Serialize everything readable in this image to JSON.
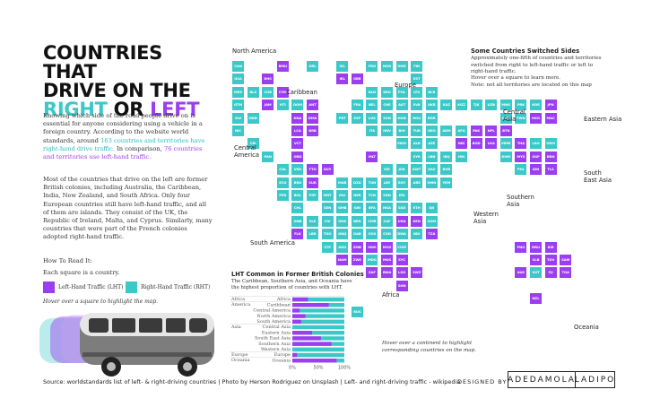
{
  "title": {
    "line1": "COUNTRIES THAT",
    "line2": "DRIVE ON THE",
    "right": "RIGHT",
    "or": " OR ",
    "left": "LEFT"
  },
  "intro": {
    "p1a": "Knowing which side of the road people drive on is essential for anyone considering using a vehicle in a foreign country. According to the website world standards, around ",
    "p1b": "163 countries and territories have right-hand drive traffic.",
    "p1c": " In comparison, ",
    "p1d": "76 countries and territories use left-hand traffic.",
    "p2": "Most of the countries that drive on the left are former British colonies, including Australia, the Caribbean, India, New Zealand, and South Africa. Only four European countries still have left-hand traffic, and all of them are islands. They consist of the UK, the Republic of Ireland, Malta, and Cyprus. Similarly, many countries that were part of the French colonies adopted right-hand traffic."
  },
  "howto": {
    "heading": "How To Read It:",
    "sub": "Each square is a country.",
    "lht_label": "Left-Hand Traffic (LHT)",
    "rht_label": "Right-Hand Traffic (RHT)",
    "hover": "Hover over a square to highlight the map."
  },
  "colors": {
    "lht": "#9b3df0",
    "rht": "#3cc8c8",
    "dark": "#2a2a2a"
  },
  "map": {
    "continents": [
      "North America",
      "Caribbean",
      "Central America",
      "South America",
      "Europe",
      "Central Asia",
      "Eastern Asia",
      "South East Asia",
      "Southern Asia",
      "Western Asia",
      "Africa",
      "Oceania"
    ],
    "switched_title": "Some Countries Switched Sides",
    "switched_text": "Approximately one-fifth of countries and territories switched from right to left-hand traffic or left to right-hand traffic.",
    "hover_note": "Hover over a square to learn more.",
    "territory_note": "Note: not all territories are located on this map",
    "continent_hover": "Hover over a continent to highlight corresponding countries on the map.",
    "cells": [
      {
        "code": "CAN",
        "t": "R"
      },
      {
        "code": "GRL",
        "t": "R"
      },
      {
        "code": "BMU",
        "t": "L"
      },
      {
        "code": "USA",
        "t": "R"
      },
      {
        "code": "BHS",
        "t": "L"
      },
      {
        "code": "MEX",
        "t": "R"
      },
      {
        "code": "BLZ",
        "t": "R"
      },
      {
        "code": "CUB",
        "t": "R"
      },
      {
        "code": "CYM",
        "t": "L"
      },
      {
        "code": "GTM",
        "t": "R"
      },
      {
        "code": "JAM",
        "t": "L"
      },
      {
        "code": "HTI",
        "t": "R"
      },
      {
        "code": "DOM",
        "t": "R"
      },
      {
        "code": "ANT",
        "t": "L"
      },
      {
        "code": "SLV",
        "t": "R"
      },
      {
        "code": "HND",
        "t": "R"
      },
      {
        "code": "KNA",
        "t": "L"
      },
      {
        "code": "DMA",
        "t": "L"
      },
      {
        "code": "NIC",
        "t": "R"
      },
      {
        "code": "LCA",
        "t": "L"
      },
      {
        "code": "BRB",
        "t": "L"
      },
      {
        "code": "CRI",
        "t": "R"
      },
      {
        "code": "VCT",
        "t": "L"
      },
      {
        "code": "GRD",
        "t": "L"
      },
      {
        "code": "PAN",
        "t": "R"
      },
      {
        "code": "TTO",
        "t": "L"
      },
      {
        "code": "COL",
        "t": "R"
      },
      {
        "code": "VEN",
        "t": "R"
      },
      {
        "code": "GUY",
        "t": "L"
      },
      {
        "code": "ECU",
        "t": "R"
      },
      {
        "code": "BRA",
        "t": "R"
      },
      {
        "code": "SUR",
        "t": "L"
      },
      {
        "code": "PER",
        "t": "R"
      },
      {
        "code": "BOL",
        "t": "R"
      },
      {
        "code": "PRY",
        "t": "R"
      },
      {
        "code": "URY",
        "t": "R"
      },
      {
        "code": "CHL",
        "t": "R"
      },
      {
        "code": "ARG",
        "t": "R"
      },
      {
        "code": "FLK",
        "t": "L"
      },
      {
        "code": "ISL",
        "t": "R"
      },
      {
        "code": "FRO",
        "t": "R"
      },
      {
        "code": "NOR",
        "t": "R"
      },
      {
        "code": "SWE",
        "t": "R"
      },
      {
        "code": "FIN",
        "t": "R"
      },
      {
        "code": "IRL",
        "t": "L"
      },
      {
        "code": "GBR",
        "t": "L"
      },
      {
        "code": "EST",
        "t": "R"
      },
      {
        "code": "NLD",
        "t": "R"
      },
      {
        "code": "DEU",
        "t": "R"
      },
      {
        "code": "POL",
        "t": "R"
      },
      {
        "code": "LTU",
        "t": "R"
      },
      {
        "code": "BLR",
        "t": "R"
      },
      {
        "code": "RUS",
        "t": "R"
      },
      {
        "code": "FRA",
        "t": "R"
      },
      {
        "code": "BEL",
        "t": "R"
      },
      {
        "code": "CHE",
        "t": "R"
      },
      {
        "code": "AUT",
        "t": "R"
      },
      {
        "code": "SVK",
        "t": "R"
      },
      {
        "code": "UKR",
        "t": "R"
      },
      {
        "code": "MDA",
        "t": "R"
      },
      {
        "code": "PRT",
        "t": "R"
      },
      {
        "code": "ESP",
        "t": "R"
      },
      {
        "code": "LUX",
        "t": "R"
      },
      {
        "code": "SVN",
        "t": "R"
      },
      {
        "code": "HUN",
        "t": "R"
      },
      {
        "code": "ROU",
        "t": "R"
      },
      {
        "code": "BGR",
        "t": "R"
      },
      {
        "code": "ITA",
        "t": "R"
      },
      {
        "code": "HRV",
        "t": "R"
      },
      {
        "code": "BIH",
        "t": "R"
      },
      {
        "code": "SRB",
        "t": "R"
      },
      {
        "code": "MNE",
        "t": "R"
      },
      {
        "code": "MKD",
        "t": "R"
      },
      {
        "code": "ALB",
        "t": "R"
      },
      {
        "code": "GRC",
        "t": "R"
      },
      {
        "code": "MLT",
        "t": "L"
      },
      {
        "code": "CYP",
        "t": "L"
      },
      {
        "code": "KAZ",
        "t": "R"
      },
      {
        "code": "KGZ",
        "t": "R"
      },
      {
        "code": "TJK",
        "t": "R"
      },
      {
        "code": "UZB",
        "t": "R"
      },
      {
        "code": "TKM",
        "t": "R"
      },
      {
        "code": "MNG",
        "t": "R"
      },
      {
        "code": "PRK",
        "t": "R"
      },
      {
        "code": "KOR",
        "t": "R"
      },
      {
        "code": "JPN",
        "t": "L"
      },
      {
        "code": "CHN",
        "t": "R"
      },
      {
        "code": "TWN",
        "t": "R"
      },
      {
        "code": "HKG",
        "t": "L"
      },
      {
        "code": "MAC",
        "t": "L"
      },
      {
        "code": "AFG",
        "t": "R"
      },
      {
        "code": "PAK",
        "t": "L"
      },
      {
        "code": "NPL",
        "t": "L"
      },
      {
        "code": "BTN",
        "t": "L"
      },
      {
        "code": "IND",
        "t": "L"
      },
      {
        "code": "BGD",
        "t": "L"
      },
      {
        "code": "LKA",
        "t": "L"
      },
      {
        "code": "MDV",
        "t": "L"
      },
      {
        "code": "MMR",
        "t": "R"
      },
      {
        "code": "THA",
        "t": "L"
      },
      {
        "code": "LAO",
        "t": "R"
      },
      {
        "code": "VNM",
        "t": "R"
      },
      {
        "code": "KHM",
        "t": "R"
      },
      {
        "code": "MYS",
        "t": "L"
      },
      {
        "code": "SGP",
        "t": "L"
      },
      {
        "code": "BRN",
        "t": "L"
      },
      {
        "code": "PHL",
        "t": "R"
      },
      {
        "code": "IDN",
        "t": "L"
      },
      {
        "code": "TLS",
        "t": "L"
      },
      {
        "code": "TUR",
        "t": "R"
      },
      {
        "code": "GEO",
        "t": "R"
      },
      {
        "code": "ARM",
        "t": "R"
      },
      {
        "code": "AZE",
        "t": "R"
      },
      {
        "code": "SYR",
        "t": "R"
      },
      {
        "code": "LBN",
        "t": "R"
      },
      {
        "code": "IRQ",
        "t": "R"
      },
      {
        "code": "IRN",
        "t": "R"
      },
      {
        "code": "ISR",
        "t": "R"
      },
      {
        "code": "JOR",
        "t": "R"
      },
      {
        "code": "KWT",
        "t": "R"
      },
      {
        "code": "SAU",
        "t": "R"
      },
      {
        "code": "BHR",
        "t": "R"
      },
      {
        "code": "QAT",
        "t": "R"
      },
      {
        "code": "ARE",
        "t": "R"
      },
      {
        "code": "OMN",
        "t": "R"
      },
      {
        "code": "YEM",
        "t": "R"
      },
      {
        "code": "MAR",
        "t": "R"
      },
      {
        "code": "DZA",
        "t": "R"
      },
      {
        "code": "TUN",
        "t": "R"
      },
      {
        "code": "LBY",
        "t": "R"
      },
      {
        "code": "EGY",
        "t": "R"
      },
      {
        "code": "MRT",
        "t": "R"
      },
      {
        "code": "MLI",
        "t": "R"
      },
      {
        "code": "NER",
        "t": "R"
      },
      {
        "code": "TCD",
        "t": "R"
      },
      {
        "code": "SDN",
        "t": "R"
      },
      {
        "code": "ERI",
        "t": "R"
      },
      {
        "code": "SEN",
        "t": "R"
      },
      {
        "code": "GMB",
        "t": "R"
      },
      {
        "code": "GIN",
        "t": "R"
      },
      {
        "code": "BFA",
        "t": "R"
      },
      {
        "code": "NGA",
        "t": "R"
      },
      {
        "code": "SSD",
        "t": "R"
      },
      {
        "code": "ETH",
        "t": "R"
      },
      {
        "code": "DJI",
        "t": "R"
      },
      {
        "code": "GNB",
        "t": "R"
      },
      {
        "code": "SLE",
        "t": "R"
      },
      {
        "code": "CIV",
        "t": "R"
      },
      {
        "code": "GHA",
        "t": "R"
      },
      {
        "code": "BEN",
        "t": "R"
      },
      {
        "code": "CMR",
        "t": "R"
      },
      {
        "code": "CAF",
        "t": "R"
      },
      {
        "code": "UGA",
        "t": "L"
      },
      {
        "code": "KEN",
        "t": "L"
      },
      {
        "code": "SOM",
        "t": "R"
      },
      {
        "code": "LBR",
        "t": "R"
      },
      {
        "code": "TGO",
        "t": "R"
      },
      {
        "code": "GNQ",
        "t": "R"
      },
      {
        "code": "GAB",
        "t": "R"
      },
      {
        "code": "COG",
        "t": "R"
      },
      {
        "code": "COD",
        "t": "R"
      },
      {
        "code": "RWA",
        "t": "R"
      },
      {
        "code": "BDI",
        "t": "R"
      },
      {
        "code": "TZA",
        "t": "L"
      },
      {
        "code": "STP",
        "t": "R"
      },
      {
        "code": "AGO",
        "t": "R"
      },
      {
        "code": "ZMB",
        "t": "L"
      },
      {
        "code": "MWI",
        "t": "L"
      },
      {
        "code": "MOZ",
        "t": "L"
      },
      {
        "code": "COM",
        "t": "R"
      },
      {
        "code": "NAM",
        "t": "L"
      },
      {
        "code": "ZWE",
        "t": "L"
      },
      {
        "code": "MDG",
        "t": "R"
      },
      {
        "code": "MUS",
        "t": "L"
      },
      {
        "code": "SYC",
        "t": "L"
      },
      {
        "code": "ZAF",
        "t": "L"
      },
      {
        "code": "BWA",
        "t": "L"
      },
      {
        "code": "LSO",
        "t": "L"
      },
      {
        "code": "SWZ",
        "t": "L"
      },
      {
        "code": "SHN",
        "t": "L"
      },
      {
        "code": "PNG",
        "t": "L"
      },
      {
        "code": "NRU",
        "t": "L"
      },
      {
        "code": "KIR",
        "t": "L"
      },
      {
        "code": "SLB",
        "t": "L"
      },
      {
        "code": "TUV",
        "t": "L"
      },
      {
        "code": "SAM",
        "t": "L"
      },
      {
        "code": "AUS",
        "t": "L"
      },
      {
        "code": "VUT",
        "t": "R"
      },
      {
        "code": "FJI",
        "t": "L"
      },
      {
        "code": "TGA",
        "t": "L"
      },
      {
        "code": "NZL",
        "t": "L"
      }
    ]
  },
  "chart_data": {
    "type": "bar",
    "title": "LHT Common in Former British Colonies",
    "subtitle": "The Caribbean, Southern Asia, and Oceania have the highest proportion of countries with LHT.",
    "groups": [
      "Africa",
      "America",
      "Asia",
      "Europe",
      "Oceania"
    ],
    "categories": [
      "Africa",
      "Caribbean",
      "Central America",
      "North America",
      "South America",
      "Central Asia",
      "Eastern Asia",
      "South East Asia",
      "Southern Asia",
      "Western Asia",
      "Europe",
      "Oceania"
    ],
    "group_of": [
      "Africa",
      "America",
      "America",
      "America",
      "America",
      "Asia",
      "Asia",
      "Asia",
      "Asia",
      "Asia",
      "Europe",
      "Oceania"
    ],
    "lht_share": [
      0.3,
      0.7,
      0.14,
      0.25,
      0.17,
      0.0,
      0.38,
      0.55,
      0.75,
      0.0,
      0.09,
      0.85
    ],
    "xlim": [
      0,
      1
    ],
    "xticks": [
      "0%",
      "50%",
      "100%"
    ]
  },
  "footer": {
    "source": "Source: worldstandards list of left- & right-driving countries | Photo by Herson Rodriguez on Unsplash | Left- and right-driving traffic - wikipedia",
    "designed_by": "DESIGNED BY",
    "name1": "ADEDAMOLA",
    "name2": "LADIPO"
  }
}
